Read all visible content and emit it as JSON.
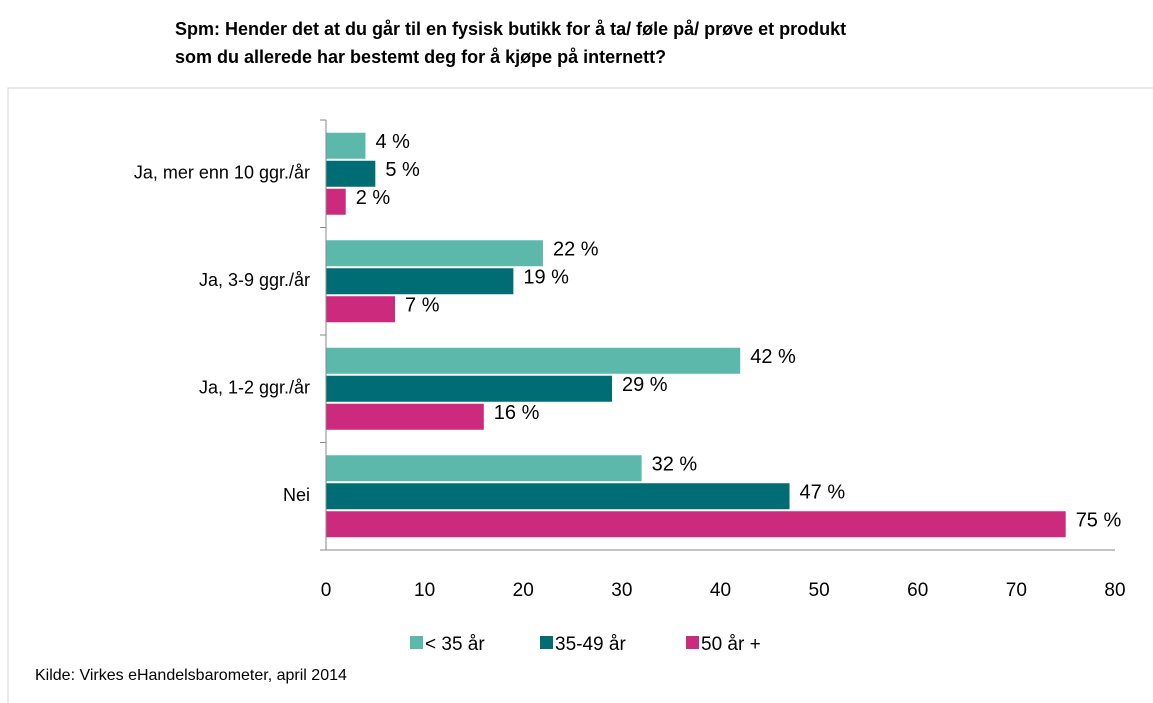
{
  "chart_data": {
    "type": "hbar",
    "title": [
      "Spm: Hender det at du går til en fysisk butikk for å ta/ føle på/ prøve et produkt",
      "som du allerede har bestemt deg for å kjøpe på internett?"
    ],
    "categories": [
      "Ja, mer enn 10 ggr./år",
      "Ja, 3-9 ggr./år",
      "Ja, 1-2 ggr./år",
      "Nei"
    ],
    "series": [
      {
        "name": "< 35 år",
        "color": "#5bb8ab",
        "values": [
          4,
          22,
          42,
          32
        ],
        "value_labels": [
          "4 %",
          "22 %",
          "42 %",
          "32 %"
        ]
      },
      {
        "name": "35-49 år",
        "color": "#006c74",
        "values": [
          5,
          19,
          29,
          47
        ],
        "value_labels": [
          "5 %",
          "19 %",
          "29 %",
          "47 %"
        ]
      },
      {
        "name": "50 år +",
        "color": "#cc2a7c",
        "values": [
          2,
          7,
          16,
          75
        ],
        "value_labels": [
          "2 %",
          "7 %",
          "16 %",
          "75 %"
        ]
      }
    ],
    "xlim": [
      0,
      80
    ],
    "xticks": [
      0,
      10,
      20,
      30,
      40,
      50,
      60,
      70,
      80
    ],
    "grid": false,
    "legend": "bottom",
    "source": "Kilde: Virkes eHandelsbarometer, april 2014"
  }
}
